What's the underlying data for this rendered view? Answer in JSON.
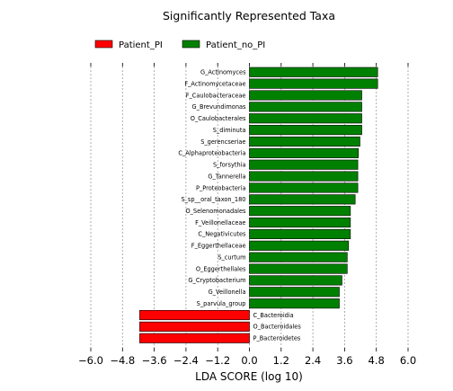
{
  "chart_data": {
    "type": "bar",
    "orientation": "horizontal",
    "title": "Significantly Represented Taxa",
    "xlabel": "LDA SCORE (log 10)",
    "xlim": [
      -6.0,
      6.0
    ],
    "xticks": [
      -6.0,
      -4.8,
      -3.6,
      -2.4,
      -1.2,
      0.0,
      1.2,
      2.4,
      3.6,
      4.8,
      6.0
    ],
    "xtick_labels": [
      "−6.0",
      "−4.8",
      "−3.6",
      "−2.4",
      "−1.2",
      "0.0",
      "1.2",
      "2.4",
      "3.6",
      "4.8",
      "6.0"
    ],
    "grid": "vertical dotted",
    "legend": {
      "placement": "top",
      "entries": [
        {
          "label": "Patient_PI",
          "color": "#ff0000"
        },
        {
          "label": "Patient_no_PI",
          "color": "#008000"
        }
      ]
    },
    "colors": {
      "Patient_PI": "#ff0000",
      "Patient_no_PI": "#008000"
    },
    "bars": [
      {
        "label": "G_Actinomyces",
        "value": 4.85,
        "group": "Patient_no_PI"
      },
      {
        "label": "F_Actinomycetaceae",
        "value": 4.85,
        "group": "Patient_no_PI"
      },
      {
        "label": "F_Caulobacteraceae",
        "value": 4.25,
        "group": "Patient_no_PI"
      },
      {
        "label": "G_Brevundimonas",
        "value": 4.25,
        "group": "Patient_no_PI"
      },
      {
        "label": "O_Caulobacterales",
        "value": 4.25,
        "group": "Patient_no_PI"
      },
      {
        "label": "S_diminuta",
        "value": 4.25,
        "group": "Patient_no_PI"
      },
      {
        "label": "S_gerencseriae",
        "value": 4.18,
        "group": "Patient_no_PI"
      },
      {
        "label": "C_Alphaproteobacteria",
        "value": 4.12,
        "group": "Patient_no_PI"
      },
      {
        "label": "S_forsythia",
        "value": 4.1,
        "group": "Patient_no_PI"
      },
      {
        "label": "G_Tannerella",
        "value": 4.1,
        "group": "Patient_no_PI"
      },
      {
        "label": "P_Proteobacteria",
        "value": 4.1,
        "group": "Patient_no_PI"
      },
      {
        "label": "S_sp__oral_taxon_180",
        "value": 4.0,
        "group": "Patient_no_PI"
      },
      {
        "label": "O_Selenomonadales",
        "value": 3.82,
        "group": "Patient_no_PI"
      },
      {
        "label": "F_Veillonellaceae",
        "value": 3.82,
        "group": "Patient_no_PI"
      },
      {
        "label": "C_Negativicutes",
        "value": 3.82,
        "group": "Patient_no_PI"
      },
      {
        "label": "F_Eggerthellaceae",
        "value": 3.75,
        "group": "Patient_no_PI"
      },
      {
        "label": "S_curtum",
        "value": 3.7,
        "group": "Patient_no_PI"
      },
      {
        "label": "O_Eggerthellales",
        "value": 3.7,
        "group": "Patient_no_PI"
      },
      {
        "label": "G_Cryptobacterium",
        "value": 3.5,
        "group": "Patient_no_PI"
      },
      {
        "label": "G_Veillonella",
        "value": 3.4,
        "group": "Patient_no_PI"
      },
      {
        "label": "S_parvula_group",
        "value": 3.4,
        "group": "Patient_no_PI"
      },
      {
        "label": "C_Bacteroidia",
        "value": -4.15,
        "group": "Patient_PI"
      },
      {
        "label": "O_Bacteroidales",
        "value": -4.15,
        "group": "Patient_PI"
      },
      {
        "label": "P_Bacteroidetes",
        "value": -4.15,
        "group": "Patient_PI"
      }
    ]
  }
}
